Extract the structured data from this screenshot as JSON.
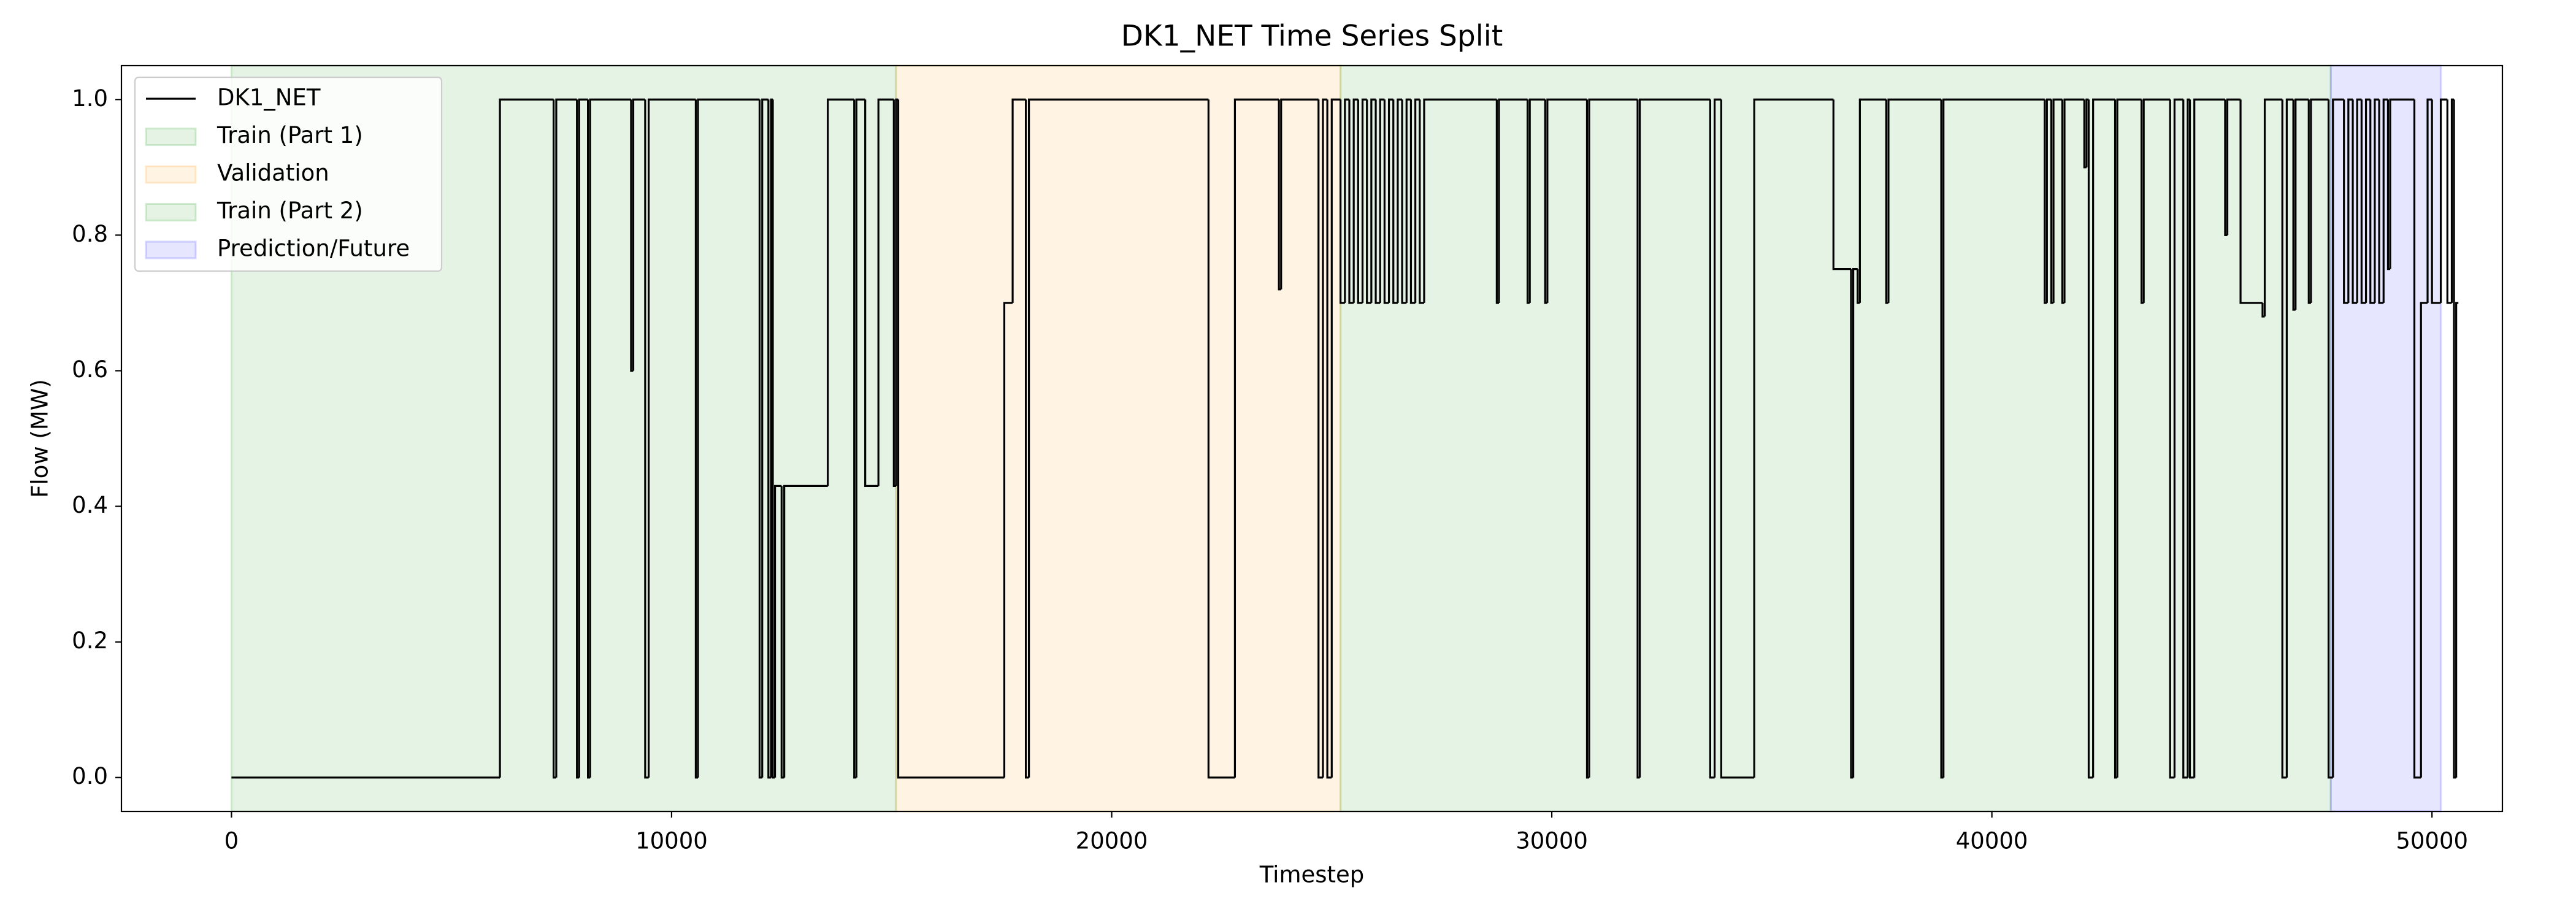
{
  "chart_data": {
    "type": "step",
    "title": "DK1_NET Time Series Split",
    "x_label": "Timestep",
    "y_label": "Flow (MW)",
    "xlim": [
      -2500,
      51600
    ],
    "ylim": [
      -0.05,
      1.05
    ],
    "xticks": [
      0,
      10000,
      20000,
      30000,
      40000,
      50000
    ],
    "yticks": [
      {
        "value": 0,
        "label": "0.0"
      },
      0.2,
      0.4,
      0.6,
      0.8,
      {
        "value": 1,
        "label": "1.0"
      }
    ],
    "legend": "upper left",
    "spans": [
      {
        "name": "Train (Part 1)",
        "color": "#2ca02c",
        "start": 0,
        "end": 15100
      },
      {
        "name": "Validation",
        "color": "#ff9f1c",
        "start": 15100,
        "end": 25200
      },
      {
        "name": "Train (Part 2)",
        "color": "#2ca02c",
        "start": 25200,
        "end": 47700
      },
      {
        "name": "Prediction/Future",
        "color": "#3030ff",
        "start": 47700,
        "end": 50200
      }
    ],
    "series": [
      {
        "name": "DK1_NET",
        "color": "#000000",
        "x": [
          0,
          6100,
          7320,
          7380,
          7850,
          7900,
          8100,
          8150,
          9080,
          9130,
          9400,
          9480,
          10550,
          10600,
          12000,
          12060,
          12200,
          12260,
          12300,
          12350,
          12500,
          12560,
          13550,
          14150,
          14200,
          14400,
          14700,
          15050,
          15100,
          15150,
          17560,
          17750,
          18050,
          18120,
          22200,
          22800,
          23800,
          23850,
          24700,
          24800,
          24900,
          25000,
          25200,
          25300,
          25400,
          25500,
          25600,
          25700,
          25800,
          25900,
          26000,
          26100,
          26200,
          26300,
          26400,
          26500,
          26600,
          26700,
          26800,
          26900,
          27000,
          27100,
          28750,
          28800,
          29450,
          29500,
          29850,
          29900,
          30800,
          30850,
          31950,
          32000,
          33600,
          33700,
          33850,
          34600,
          36400,
          36800,
          36850,
          36950,
          37000,
          37600,
          37650,
          38850,
          38900,
          41200,
          41250,
          41350,
          41400,
          41600,
          41650,
          42100,
          42150,
          42200,
          42300,
          42800,
          42850,
          43400,
          43450,
          44050,
          44150,
          44350,
          44450,
          44500,
          44600,
          45300,
          45350,
          45650,
          46150,
          46200,
          46600,
          46700,
          46850,
          46900,
          47200,
          47250,
          47650,
          47750,
          48000,
          48100,
          48200,
          48300,
          48400,
          48500,
          48600,
          48700,
          48800,
          48900,
          49000,
          49050,
          49600,
          49750,
          49900,
          50000,
          50200,
          50350,
          50450,
          50500,
          50550,
          50600
        ],
        "values": [
          0,
          1,
          0,
          1,
          0,
          1,
          0,
          1,
          0.6,
          1,
          0,
          1,
          0,
          1,
          0,
          1,
          0,
          1,
          0,
          0.43,
          0,
          0.43,
          1,
          0,
          1,
          0.43,
          1,
          0.43,
          1,
          0,
          0.7,
          1,
          0,
          1,
          0,
          1,
          0.72,
          1,
          0,
          1,
          0,
          1,
          0.7,
          1,
          0.7,
          1,
          0.7,
          1,
          0.7,
          1,
          0.7,
          1,
          0.7,
          1,
          0.7,
          1,
          0.7,
          1,
          0.7,
          1,
          0.7,
          1,
          0.7,
          1,
          0.7,
          1,
          0.7,
          1,
          0,
          1,
          0,
          1,
          0,
          1,
          0,
          1,
          0.75,
          0,
          0.75,
          0.7,
          1,
          0.7,
          1,
          0,
          1,
          0.7,
          1,
          0.7,
          1,
          0.7,
          1,
          0.9,
          1,
          0,
          1,
          0,
          1,
          0.7,
          1,
          0,
          1,
          0,
          1,
          0,
          1,
          0.8,
          1,
          0.7,
          0.68,
          1,
          0,
          1,
          0.69,
          1,
          0.7,
          1,
          0,
          1,
          0.7,
          1,
          0.7,
          1,
          0.7,
          1,
          0.7,
          1,
          0.7,
          1,
          0.75,
          1,
          0,
          0.7,
          1,
          0.7,
          1,
          0.7,
          1,
          0,
          0.7,
          0.7
        ]
      }
    ]
  }
}
